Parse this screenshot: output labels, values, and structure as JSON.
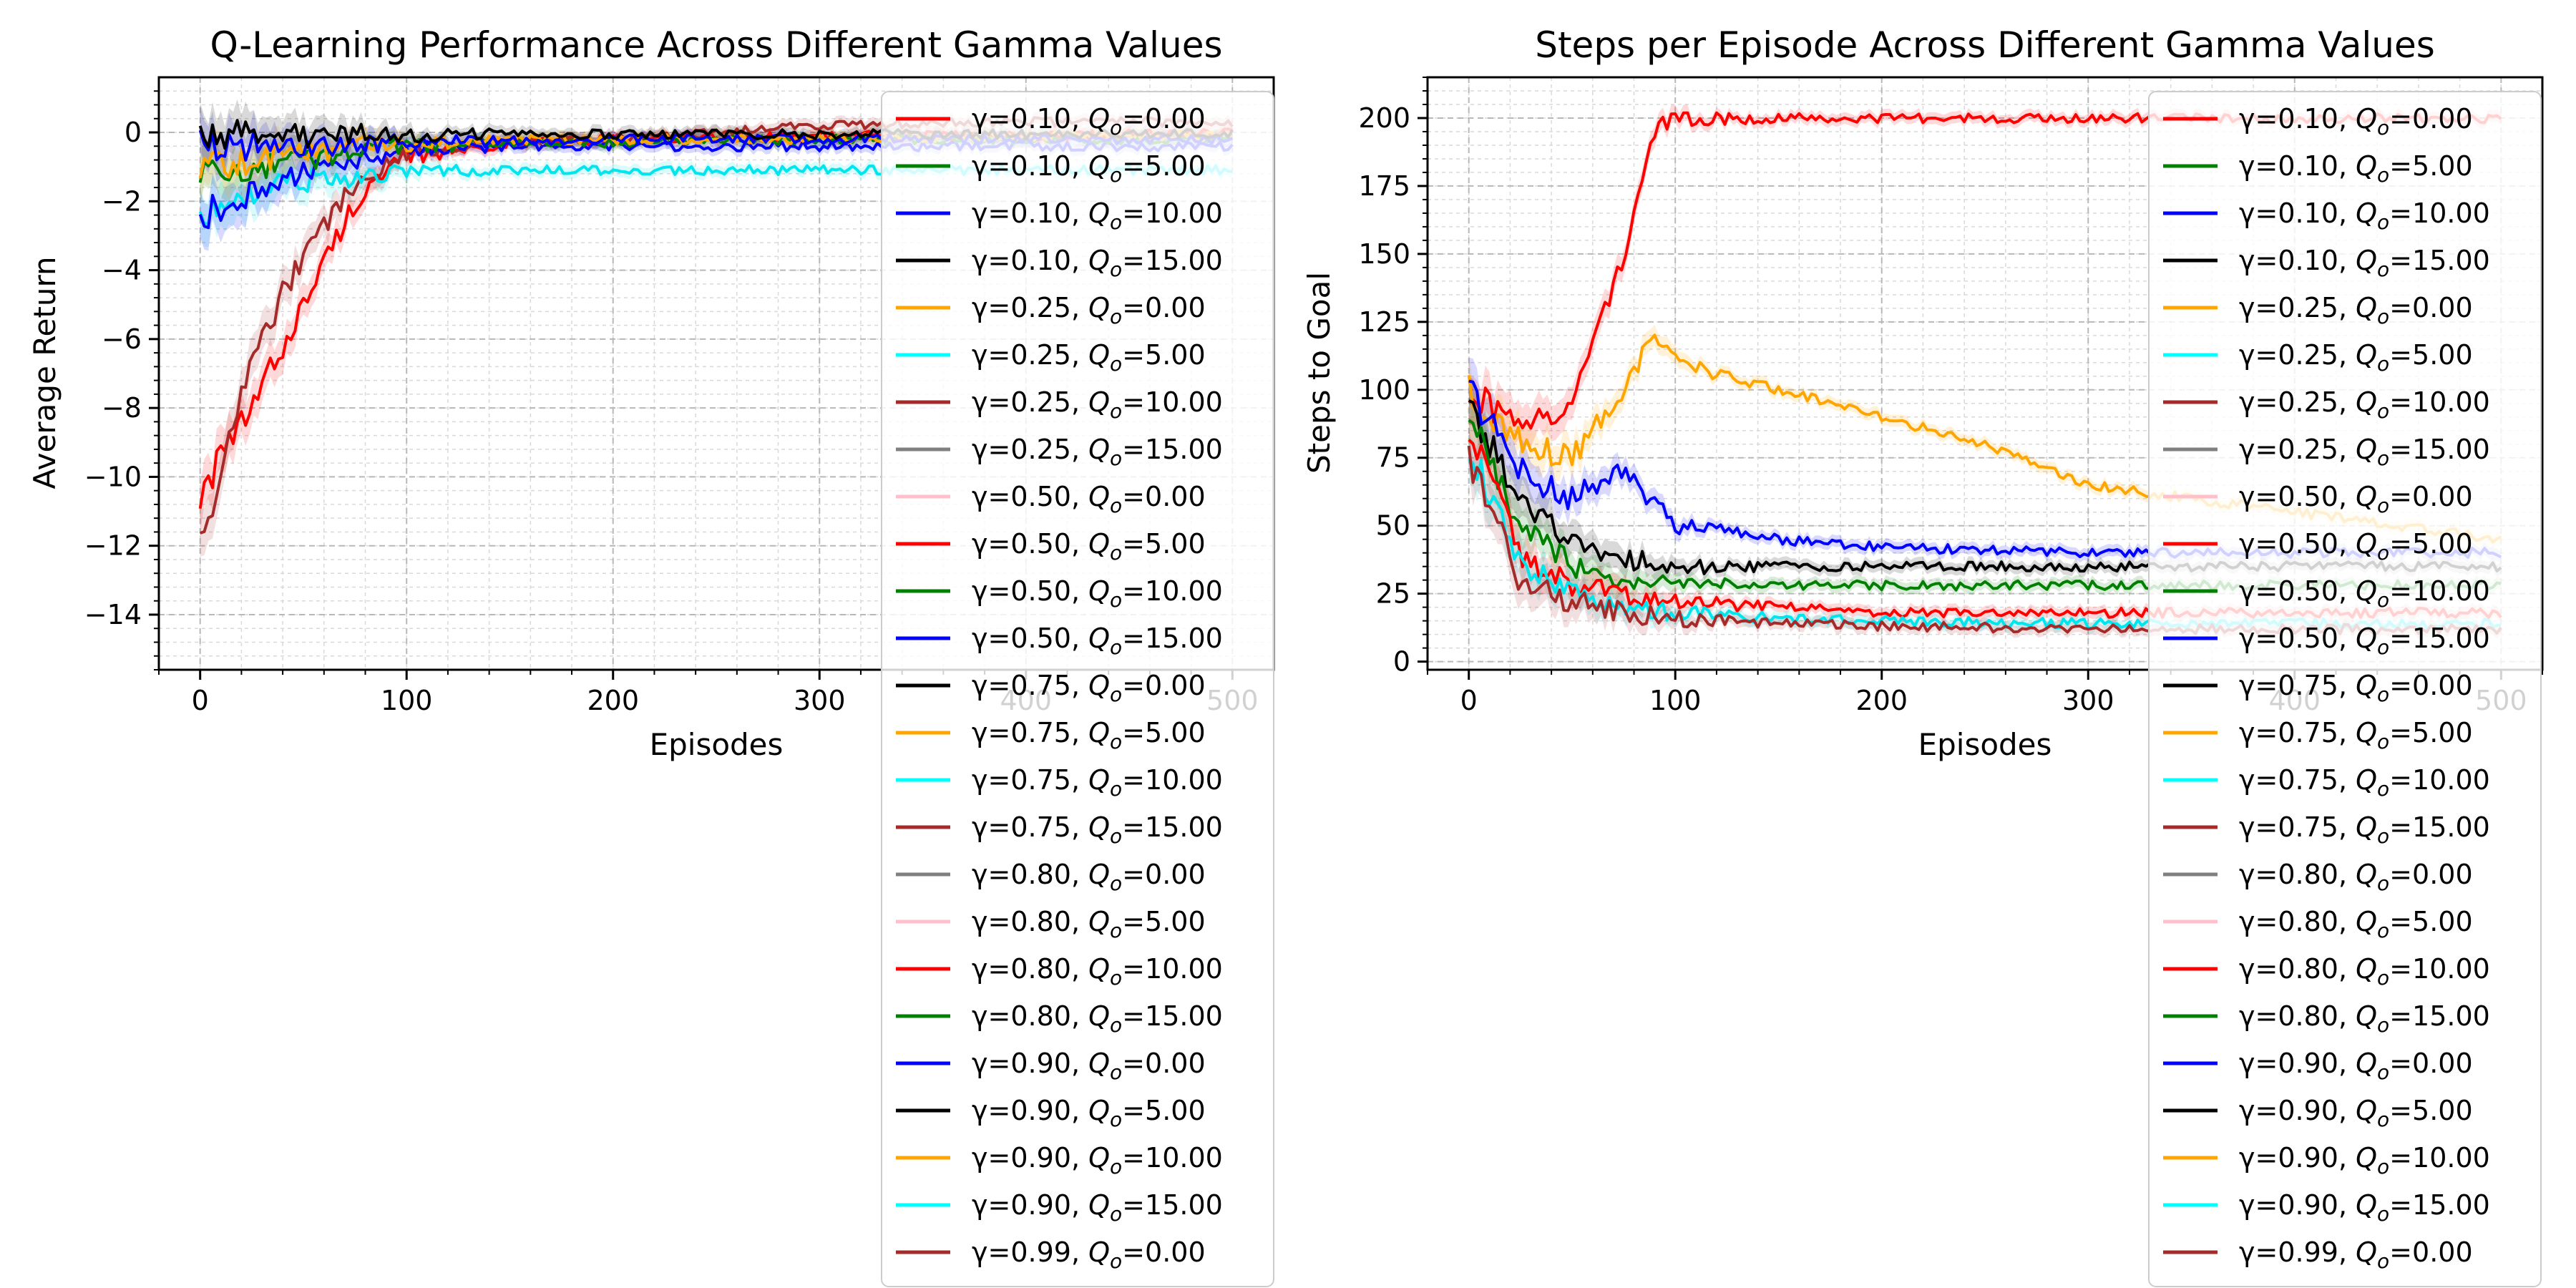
{
  "chart_data": [
    {
      "type": "line",
      "title": "Q-Learning Performance Across Different Gamma Values",
      "xlabel": "Episodes",
      "ylabel": "Average Return",
      "xlim": [
        -20,
        520
      ],
      "ylim": [
        -15.6,
        1.6
      ],
      "xticks": [
        0,
        100,
        200,
        300,
        400,
        500
      ],
      "xtick_labels": [
        "0",
        "100",
        "200",
        "300",
        "400",
        "500"
      ],
      "yticks": [
        0,
        -2,
        -4,
        -6,
        -8,
        -10,
        -12,
        -14
      ],
      "ytick_labels": [
        "0",
        "−2",
        "−4",
        "−6",
        "−8",
        "−10",
        "−12",
        "−14"
      ],
      "grid": true,
      "legend_position": "top-right",
      "series": [
        {
          "name": "γ=0.10, Q_o=0.00",
          "color": "#ff0000",
          "x": [
            0,
            25,
            50,
            75,
            100,
            150,
            200,
            300,
            400,
            500
          ],
          "y": [
            -10.5,
            -8,
            -5,
            -2,
            -0.7,
            -0.3,
            -0.2,
            -0.1,
            -0.1,
            0
          ]
        },
        {
          "name": "γ=0.25, Q_o=10.00",
          "color": "#a52a2a",
          "x": [
            0,
            25,
            50,
            75,
            100,
            150,
            200,
            300,
            400,
            500
          ],
          "y": [
            -12,
            -6.5,
            -3.5,
            -1.5,
            -0.6,
            -0.3,
            -0.2,
            0.2,
            0.3,
            0.3
          ]
        },
        {
          "name": "γ=0.25, Q_o=5.00",
          "color": "#00e5ee",
          "x": [
            0,
            25,
            50,
            75,
            100,
            150,
            200,
            300,
            400,
            500
          ],
          "y": [
            -2.5,
            -1.8,
            -1.4,
            -1.3,
            -1.2,
            -1.1,
            -1.1,
            -1.1,
            -1.1,
            -1.1
          ]
        },
        {
          "name": "γ=0.50, Q_o=15.00",
          "color": "#0000ff",
          "x": [
            0,
            25,
            50,
            75,
            100,
            150,
            200,
            300,
            400,
            500
          ],
          "y": [
            -2.4,
            -1.8,
            -1.2,
            -0.8,
            -0.5,
            -0.4,
            -0.4,
            -0.4,
            -0.4,
            -0.4
          ]
        },
        {
          "name": "γ=0.10, Q_o=5.00",
          "color": "#008000",
          "x": [
            0,
            25,
            50,
            75,
            100,
            150,
            200,
            300,
            400,
            500
          ],
          "y": [
            -1.3,
            -1,
            -0.8,
            -0.6,
            -0.4,
            -0.3,
            -0.3,
            -0.2,
            -0.2,
            -0.2
          ]
        },
        {
          "name": "γ=0.25, Q_o=0.00",
          "color": "#ffa500",
          "x": [
            0,
            25,
            50,
            75,
            100,
            150,
            200,
            300,
            400,
            500
          ],
          "y": [
            -1,
            -0.8,
            -0.6,
            -0.4,
            -0.3,
            -0.2,
            -0.2,
            -0.2,
            -0.1,
            -0.1
          ]
        },
        {
          "name": "γ=0.10, Q_o=10.00",
          "color": "#0000ff",
          "x": [
            0,
            100,
            200,
            300,
            400,
            500
          ],
          "y": [
            -0.4,
            -0.3,
            -0.2,
            -0.2,
            -0.2,
            -0.2
          ]
        },
        {
          "name": "γ=0.10, Q_o=15.00",
          "color": "#000000",
          "x": [
            0,
            100,
            200,
            300,
            400,
            500
          ],
          "y": [
            -0.1,
            -0.05,
            -0.05,
            -0.05,
            -0.05,
            -0.05
          ]
        }
      ],
      "legend": [
        {
          "gamma": "γ=0.10, ",
          "q": "Q",
          "sub": "o",
          "val": "=0.00",
          "color": "#ff0000"
        },
        {
          "gamma": "γ=0.10, ",
          "q": "Q",
          "sub": "o",
          "val": "=5.00",
          "color": "#008000"
        },
        {
          "gamma": "γ=0.10, ",
          "q": "Q",
          "sub": "o",
          "val": "=10.00",
          "color": "#0000ff"
        },
        {
          "gamma": "γ=0.10, ",
          "q": "Q",
          "sub": "o",
          "val": "=15.00",
          "color": "#000000"
        },
        {
          "gamma": "γ=0.25, ",
          "q": "Q",
          "sub": "o",
          "val": "=0.00",
          "color": "#ffa500"
        },
        {
          "gamma": "γ=0.25, ",
          "q": "Q",
          "sub": "o",
          "val": "=5.00",
          "color": "#00ffff"
        },
        {
          "gamma": "γ=0.25, ",
          "q": "Q",
          "sub": "o",
          "val": "=10.00",
          "color": "#a52a2a"
        },
        {
          "gamma": "γ=0.25, ",
          "q": "Q",
          "sub": "o",
          "val": "=15.00",
          "color": "#808080"
        },
        {
          "gamma": "γ=0.50, ",
          "q": "Q",
          "sub": "o",
          "val": "=0.00",
          "color": "#ffc0cb"
        },
        {
          "gamma": "γ=0.50, ",
          "q": "Q",
          "sub": "o",
          "val": "=5.00",
          "color": "#ff0000"
        },
        {
          "gamma": "γ=0.50, ",
          "q": "Q",
          "sub": "o",
          "val": "=10.00",
          "color": "#008000"
        },
        {
          "gamma": "γ=0.50, ",
          "q": "Q",
          "sub": "o",
          "val": "=15.00",
          "color": "#0000ff"
        },
        {
          "gamma": "γ=0.75, ",
          "q": "Q",
          "sub": "o",
          "val": "=0.00",
          "color": "#000000"
        },
        {
          "gamma": "γ=0.75, ",
          "q": "Q",
          "sub": "o",
          "val": "=5.00",
          "color": "#ffa500"
        },
        {
          "gamma": "γ=0.75, ",
          "q": "Q",
          "sub": "o",
          "val": "=10.00",
          "color": "#00ffff"
        },
        {
          "gamma": "γ=0.75, ",
          "q": "Q",
          "sub": "o",
          "val": "=15.00",
          "color": "#a52a2a"
        },
        {
          "gamma": "γ=0.80, ",
          "q": "Q",
          "sub": "o",
          "val": "=0.00",
          "color": "#808080"
        },
        {
          "gamma": "γ=0.80, ",
          "q": "Q",
          "sub": "o",
          "val": "=5.00",
          "color": "#ffc0cb"
        },
        {
          "gamma": "γ=0.80, ",
          "q": "Q",
          "sub": "o",
          "val": "=10.00",
          "color": "#ff0000"
        },
        {
          "gamma": "γ=0.80, ",
          "q": "Q",
          "sub": "o",
          "val": "=15.00",
          "color": "#008000"
        },
        {
          "gamma": "γ=0.90, ",
          "q": "Q",
          "sub": "o",
          "val": "=0.00",
          "color": "#0000ff"
        },
        {
          "gamma": "γ=0.90, ",
          "q": "Q",
          "sub": "o",
          "val": "=5.00",
          "color": "#000000"
        },
        {
          "gamma": "γ=0.90, ",
          "q": "Q",
          "sub": "o",
          "val": "=10.00",
          "color": "#ffa500"
        },
        {
          "gamma": "γ=0.90, ",
          "q": "Q",
          "sub": "o",
          "val": "=15.00",
          "color": "#00ffff"
        },
        {
          "gamma": "γ=0.99, ",
          "q": "Q",
          "sub": "o",
          "val": "=0.00",
          "color": "#a52a2a"
        }
      ]
    },
    {
      "type": "line",
      "title": "Steps per Episode Across Different Gamma Values",
      "xlabel": "Episodes",
      "ylabel": "Steps to Goal",
      "xlim": [
        -20,
        520
      ],
      "ylim": [
        -3,
        215
      ],
      "xticks": [
        0,
        100,
        200,
        300,
        400,
        500
      ],
      "xtick_labels": [
        "0",
        "100",
        "200",
        "300",
        "400",
        "500"
      ],
      "yticks": [
        0,
        25,
        50,
        75,
        100,
        125,
        150,
        175,
        200
      ],
      "ytick_labels": [
        "0",
        "25",
        "50",
        "75",
        "100",
        "125",
        "150",
        "175",
        "200"
      ],
      "grid": true,
      "legend_position": "top-right",
      "series": [
        {
          "name": "γ=0.10, Q_o=0.00",
          "color": "#ff0000",
          "x": [
            0,
            25,
            50,
            75,
            90,
            100,
            200,
            300,
            400,
            500
          ],
          "y": [
            100,
            85,
            95,
            150,
            195,
            200,
            200,
            200,
            200,
            200
          ]
        },
        {
          "name": "γ=0.25, Q_o=0.00",
          "color": "#ffa500",
          "x": [
            0,
            25,
            50,
            75,
            90,
            100,
            150,
            200,
            250,
            300,
            350,
            400,
            450,
            500
          ],
          "y": [
            100,
            80,
            75,
            100,
            120,
            110,
            100,
            90,
            80,
            65,
            60,
            55,
            50,
            45
          ]
        },
        {
          "name": "γ=0.50, Q_o=15.00",
          "color": "#0000ff",
          "x": [
            0,
            25,
            50,
            75,
            100,
            150,
            200,
            300,
            400,
            500
          ],
          "y": [
            100,
            70,
            60,
            70,
            50,
            45,
            42,
            40,
            40,
            40
          ]
        },
        {
          "name": "γ=0.75, Q_o=0.00",
          "color": "#000000",
          "x": [
            0,
            25,
            50,
            75,
            100,
            150,
            200,
            300,
            400,
            500
          ],
          "y": [
            95,
            60,
            45,
            38,
            35,
            35,
            35,
            35,
            35,
            35
          ]
        },
        {
          "name": "γ=0.50, Q_o=10.00",
          "color": "#008000",
          "x": [
            0,
            25,
            50,
            75,
            100,
            150,
            200,
            300,
            400,
            500
          ],
          "y": [
            90,
            50,
            35,
            30,
            28,
            28,
            28,
            28,
            28,
            28
          ]
        },
        {
          "name": "γ=0.80, Q_o=10.00",
          "color": "#ff0000",
          "x": [
            0,
            25,
            50,
            75,
            100,
            150,
            200,
            300,
            400,
            500
          ],
          "y": [
            85,
            40,
            28,
            25,
            22,
            20,
            18,
            18,
            18,
            18
          ]
        },
        {
          "name": "γ=0.75, Q_o=10.00",
          "color": "#00e5ee",
          "x": [
            0,
            25,
            50,
            75,
            100,
            150,
            200,
            300,
            400,
            500
          ],
          "y": [
            80,
            35,
            25,
            20,
            18,
            16,
            15,
            14,
            14,
            14
          ]
        },
        {
          "name": "γ=0.99, Q_o=0.00",
          "color": "#a52a2a",
          "x": [
            0,
            25,
            50,
            75,
            100,
            150,
            200,
            300,
            400,
            500
          ],
          "y": [
            75,
            30,
            22,
            18,
            16,
            14,
            13,
            12,
            12,
            12
          ]
        }
      ],
      "legend": [
        {
          "gamma": "γ=0.10, ",
          "q": "Q",
          "sub": "o",
          "val": "=0.00",
          "color": "#ff0000"
        },
        {
          "gamma": "γ=0.10, ",
          "q": "Q",
          "sub": "o",
          "val": "=5.00",
          "color": "#008000"
        },
        {
          "gamma": "γ=0.10, ",
          "q": "Q",
          "sub": "o",
          "val": "=10.00",
          "color": "#0000ff"
        },
        {
          "gamma": "γ=0.10, ",
          "q": "Q",
          "sub": "o",
          "val": "=15.00",
          "color": "#000000"
        },
        {
          "gamma": "γ=0.25, ",
          "q": "Q",
          "sub": "o",
          "val": "=0.00",
          "color": "#ffa500"
        },
        {
          "gamma": "γ=0.25, ",
          "q": "Q",
          "sub": "o",
          "val": "=5.00",
          "color": "#00ffff"
        },
        {
          "gamma": "γ=0.25, ",
          "q": "Q",
          "sub": "o",
          "val": "=10.00",
          "color": "#a52a2a"
        },
        {
          "gamma": "γ=0.25, ",
          "q": "Q",
          "sub": "o",
          "val": "=15.00",
          "color": "#808080"
        },
        {
          "gamma": "γ=0.50, ",
          "q": "Q",
          "sub": "o",
          "val": "=0.00",
          "color": "#ffc0cb"
        },
        {
          "gamma": "γ=0.50, ",
          "q": "Q",
          "sub": "o",
          "val": "=5.00",
          "color": "#ff0000"
        },
        {
          "gamma": "γ=0.50, ",
          "q": "Q",
          "sub": "o",
          "val": "=10.00",
          "color": "#008000"
        },
        {
          "gamma": "γ=0.50, ",
          "q": "Q",
          "sub": "o",
          "val": "=15.00",
          "color": "#0000ff"
        },
        {
          "gamma": "γ=0.75, ",
          "q": "Q",
          "sub": "o",
          "val": "=0.00",
          "color": "#000000"
        },
        {
          "gamma": "γ=0.75, ",
          "q": "Q",
          "sub": "o",
          "val": "=5.00",
          "color": "#ffa500"
        },
        {
          "gamma": "γ=0.75, ",
          "q": "Q",
          "sub": "o",
          "val": "=10.00",
          "color": "#00ffff"
        },
        {
          "gamma": "γ=0.75, ",
          "q": "Q",
          "sub": "o",
          "val": "=15.00",
          "color": "#a52a2a"
        },
        {
          "gamma": "γ=0.80, ",
          "q": "Q",
          "sub": "o",
          "val": "=0.00",
          "color": "#808080"
        },
        {
          "gamma": "γ=0.80, ",
          "q": "Q",
          "sub": "o",
          "val": "=5.00",
          "color": "#ffc0cb"
        },
        {
          "gamma": "γ=0.80, ",
          "q": "Q",
          "sub": "o",
          "val": "=10.00",
          "color": "#ff0000"
        },
        {
          "gamma": "γ=0.80, ",
          "q": "Q",
          "sub": "o",
          "val": "=15.00",
          "color": "#008000"
        },
        {
          "gamma": "γ=0.90, ",
          "q": "Q",
          "sub": "o",
          "val": "=0.00",
          "color": "#0000ff"
        },
        {
          "gamma": "γ=0.90, ",
          "q": "Q",
          "sub": "o",
          "val": "=5.00",
          "color": "#000000"
        },
        {
          "gamma": "γ=0.90, ",
          "q": "Q",
          "sub": "o",
          "val": "=10.00",
          "color": "#ffa500"
        },
        {
          "gamma": "γ=0.90, ",
          "q": "Q",
          "sub": "o",
          "val": "=15.00",
          "color": "#00ffff"
        },
        {
          "gamma": "γ=0.99, ",
          "q": "Q",
          "sub": "o",
          "val": "=0.00",
          "color": "#a52a2a"
        }
      ]
    }
  ]
}
